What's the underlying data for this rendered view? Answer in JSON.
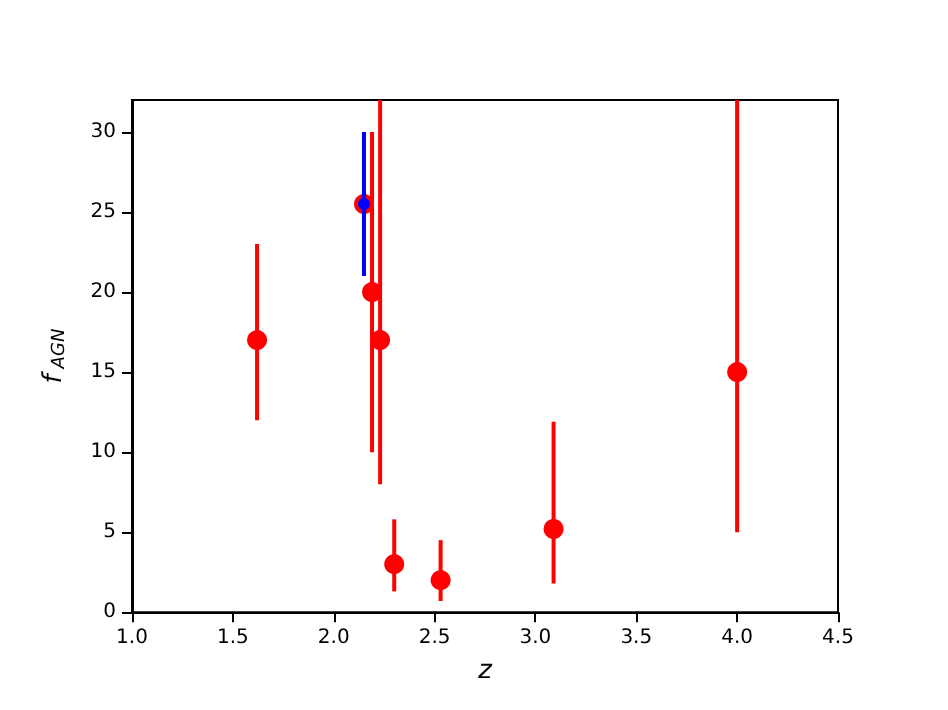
{
  "chart_data": {
    "type": "scatter",
    "xlabel": "z",
    "ylabel": "f$_{AGN}$",
    "xlim": [
      1.0,
      4.5
    ],
    "xticks": [
      {
        "value": 1,
        "label": "1.0"
      },
      {
        "value": 1.5,
        "label": "1.5"
      },
      {
        "value": 2,
        "label": "2.0"
      },
      {
        "value": 2.5,
        "label": "2.5"
      },
      {
        "value": 3,
        "label": "3.0"
      },
      {
        "value": 3.5,
        "label": "3.5"
      },
      {
        "value": 4,
        "label": "4.0"
      },
      {
        "value": 4.5,
        "label": "4.5"
      }
    ],
    "ylim": [
      0,
      32
    ],
    "yticks": [
      0,
      5,
      10,
      15,
      20,
      25,
      30
    ],
    "grid": false,
    "marker": "circle",
    "series": [
      {
        "color": "#ff0000",
        "x": [
          1.62,
          2.15,
          2.19,
          2.23,
          2.3,
          2.53,
          3.09,
          4.0
        ],
        "values": [
          17,
          25.5,
          20,
          17,
          3,
          2,
          5.2,
          15
        ],
        "errors": [
          [
            12,
            23
          ],
          null,
          [
            10,
            30
          ],
          [
            8,
            32
          ],
          [
            1.3,
            5.8
          ],
          [
            0.7,
            4.5
          ],
          [
            1.8,
            11.9
          ],
          [
            5,
            32
          ]
        ]
      },
      {
        "color": "#0000ff",
        "x": [
          2.15
        ],
        "values": [
          25.5
        ],
        "errors": [
          [
            21,
            30
          ]
        ]
      }
    ]
  }
}
